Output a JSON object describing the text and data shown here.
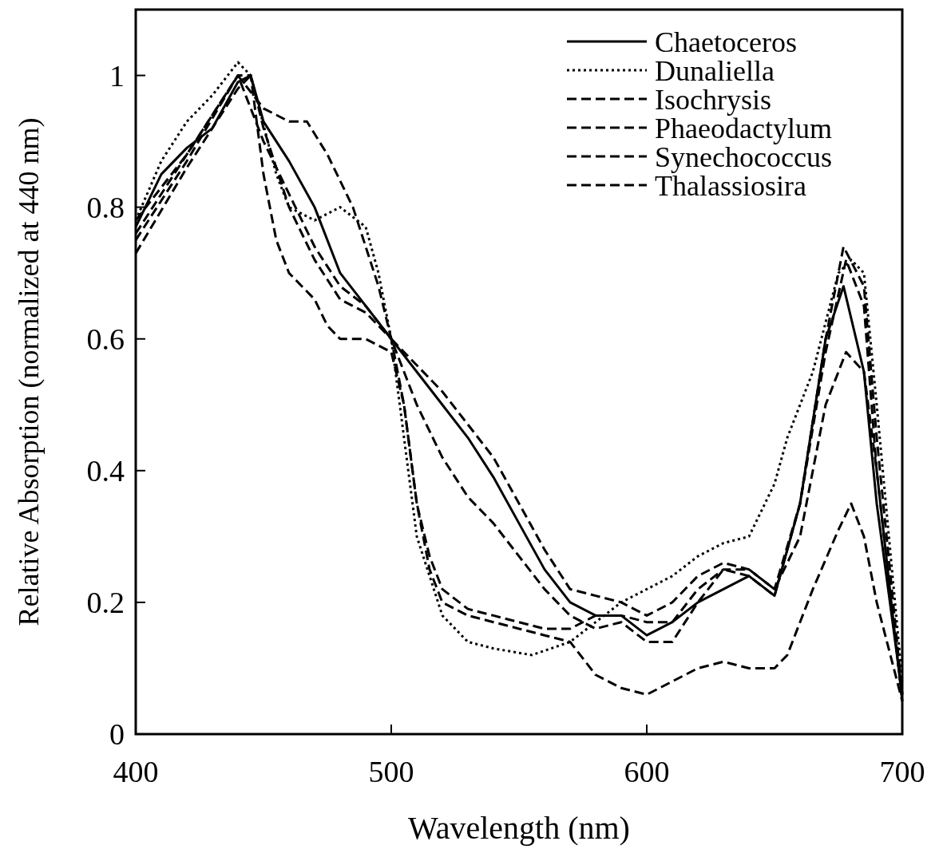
{
  "chart_data": {
    "type": "line",
    "xlabel": "Wavelength (nm)",
    "ylabel": "Relative Absorption (normalized at 440 nm)",
    "xlim": [
      400,
      700
    ],
    "ylim": [
      0,
      1.1
    ],
    "xticks": [
      400,
      500,
      600,
      700
    ],
    "yticks": [
      0,
      0.2,
      0.4,
      0.6,
      0.8,
      1
    ],
    "legend": "top right",
    "grid": false,
    "series": [
      {
        "name": "Chaetoceros",
        "color": "#000000",
        "line_style": "solid",
        "x": [
          400,
          410,
          420,
          430,
          440,
          445,
          450,
          460,
          470,
          480,
          490,
          500,
          510,
          520,
          530,
          540,
          550,
          560,
          570,
          580,
          590,
          600,
          610,
          620,
          630,
          640,
          650,
          660,
          670,
          677,
          685,
          690,
          700
        ],
        "values": [
          0.77,
          0.85,
          0.89,
          0.92,
          0.99,
          1.0,
          0.93,
          0.87,
          0.8,
          0.7,
          0.65,
          0.6,
          0.55,
          0.5,
          0.45,
          0.39,
          0.32,
          0.25,
          0.2,
          0.18,
          0.18,
          0.15,
          0.17,
          0.2,
          0.22,
          0.24,
          0.21,
          0.35,
          0.6,
          0.68,
          0.55,
          0.35,
          0.06
        ]
      },
      {
        "name": "Dunaliella",
        "color": "#000000",
        "line_style": "dotted",
        "x": [
          400,
          410,
          420,
          430,
          440,
          445,
          455,
          460,
          470,
          480,
          490,
          495,
          500,
          505,
          510,
          520,
          530,
          540,
          555,
          570,
          580,
          590,
          600,
          610,
          620,
          630,
          640,
          650,
          655,
          665,
          675,
          680,
          685,
          690,
          700
        ],
        "values": [
          0.78,
          0.87,
          0.93,
          0.97,
          1.02,
          1.0,
          0.85,
          0.8,
          0.78,
          0.8,
          0.77,
          0.7,
          0.6,
          0.45,
          0.3,
          0.18,
          0.14,
          0.13,
          0.12,
          0.14,
          0.17,
          0.2,
          0.22,
          0.24,
          0.27,
          0.29,
          0.3,
          0.38,
          0.45,
          0.55,
          0.7,
          0.72,
          0.7,
          0.5,
          0.08
        ]
      },
      {
        "name": "Isochrysis",
        "color": "#000000",
        "line_style": "dashed",
        "x": [
          400,
          420,
          440,
          450,
          460,
          467,
          475,
          485,
          495,
          500,
          510,
          520,
          530,
          540,
          550,
          560,
          570,
          580,
          590,
          600,
          610,
          620,
          630,
          640,
          650,
          660,
          670,
          677,
          685,
          690,
          700
        ],
        "values": [
          0.76,
          0.88,
          1.0,
          0.95,
          0.93,
          0.93,
          0.88,
          0.8,
          0.68,
          0.6,
          0.5,
          0.42,
          0.36,
          0.32,
          0.27,
          0.22,
          0.18,
          0.16,
          0.17,
          0.14,
          0.14,
          0.2,
          0.25,
          0.24,
          0.21,
          0.35,
          0.6,
          0.74,
          0.68,
          0.45,
          0.06
        ]
      },
      {
        "name": "Phaeodactylum",
        "color": "#000000",
        "line_style": "dashed",
        "x": [
          400,
          420,
          440,
          445,
          450,
          460,
          470,
          480,
          490,
          500,
          505,
          510,
          515,
          520,
          530,
          540,
          550,
          560,
          570,
          580,
          590,
          600,
          610,
          620,
          630,
          640,
          650,
          660,
          670,
          678,
          685,
          690,
          700
        ],
        "values": [
          0.73,
          0.86,
          0.98,
          1.0,
          0.92,
          0.8,
          0.72,
          0.66,
          0.64,
          0.6,
          0.5,
          0.35,
          0.27,
          0.22,
          0.19,
          0.18,
          0.17,
          0.16,
          0.16,
          0.18,
          0.18,
          0.17,
          0.17,
          0.22,
          0.25,
          0.25,
          0.22,
          0.35,
          0.58,
          0.72,
          0.65,
          0.4,
          0.05
        ]
      },
      {
        "name": "Synechococcus",
        "color": "#000000",
        "line_style": "dashed",
        "x": [
          400,
          420,
          440,
          445,
          450,
          455,
          460,
          470,
          475,
          480,
          490,
          500,
          505,
          510,
          515,
          520,
          530,
          540,
          550,
          560,
          570,
          580,
          590,
          600,
          610,
          620,
          630,
          640,
          650,
          655,
          665,
          675,
          680,
          685,
          690,
          700
        ],
        "values": [
          0.78,
          0.88,
          1.0,
          1.0,
          0.85,
          0.75,
          0.7,
          0.66,
          0.62,
          0.6,
          0.6,
          0.58,
          0.5,
          0.35,
          0.25,
          0.2,
          0.18,
          0.17,
          0.16,
          0.15,
          0.14,
          0.09,
          0.07,
          0.06,
          0.08,
          0.1,
          0.11,
          0.1,
          0.1,
          0.12,
          0.22,
          0.31,
          0.35,
          0.3,
          0.2,
          0.05
        ]
      },
      {
        "name": "Thalassiosira",
        "color": "#000000",
        "line_style": "dashed",
        "x": [
          400,
          420,
          440,
          450,
          460,
          470,
          480,
          490,
          500,
          510,
          520,
          530,
          540,
          550,
          560,
          570,
          580,
          590,
          600,
          610,
          620,
          630,
          640,
          650,
          660,
          670,
          678,
          685,
          690,
          700
        ],
        "values": [
          0.75,
          0.87,
          1.0,
          0.9,
          0.82,
          0.74,
          0.68,
          0.65,
          0.6,
          0.56,
          0.52,
          0.47,
          0.42,
          0.35,
          0.28,
          0.22,
          0.21,
          0.2,
          0.18,
          0.2,
          0.24,
          0.26,
          0.25,
          0.22,
          0.3,
          0.5,
          0.58,
          0.55,
          0.4,
          0.05
        ]
      }
    ]
  }
}
